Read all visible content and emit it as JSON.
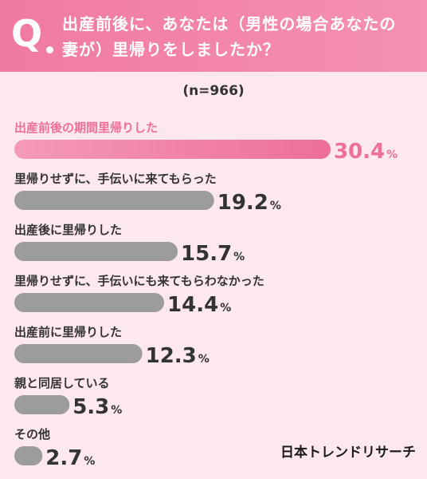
{
  "header": {
    "q_mark": "Q",
    "question_line1": "出産前後に、あなたは（男性の場合あなたの",
    "question_line2": "妻が）里帰りをしましたか？"
  },
  "sample_note": "(n=966)",
  "chart_data": {
    "type": "bar",
    "orientation": "horizontal",
    "categories": [
      "出産前後の期間里帰りした",
      "里帰りせずに、手伝いに来てもらった",
      "出産後に里帰りした",
      "里帰りせずに、手伝いにも来てもらわなかった",
      "出産前に里帰りした",
      "親と同居している",
      "その他"
    ],
    "values": [
      30.4,
      19.2,
      15.7,
      14.4,
      12.3,
      5.3,
      2.7
    ],
    "value_labels": [
      "30.4",
      "19.2",
      "15.7",
      "14.4",
      "12.3",
      "5.3",
      "2.7"
    ],
    "unit": "%",
    "highlight_index": 0,
    "colors": {
      "highlight_bar": "#ee6f97",
      "highlight_text": "#ee6f97",
      "bar": "#9c9c9c",
      "text": "#333333"
    }
  },
  "branding": {
    "logo_text": "日本トレンドリサーチ"
  }
}
